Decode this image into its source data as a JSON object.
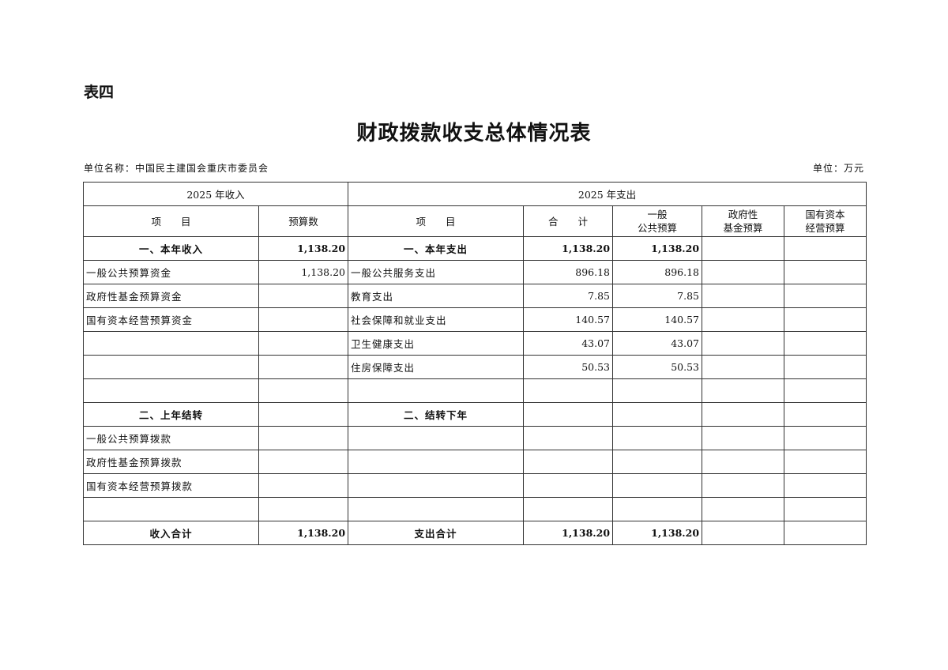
{
  "label": "表四",
  "title": "财政拨款收支总体情况表",
  "unit_name": "单位名称：中国民主建国会重庆市委员会",
  "unit": "单位：万元",
  "table": {
    "income_header": "2025 年收入",
    "expense_header": "2025 年支出",
    "columns": [
      "项　　目",
      "预算数",
      "项　　目",
      "合　　计",
      "一般\n公共预算",
      "政府性\n基金预算",
      "国有资本\n经营预算"
    ],
    "rows": [
      {
        "bold": true,
        "cells": [
          "一、本年收入",
          "1,138.20",
          "一、本年支出",
          "1,138.20",
          "1,138.20",
          "",
          ""
        ]
      },
      {
        "bold": false,
        "cells": [
          "一般公共预算资金",
          "1,138.20",
          "一般公共服务支出",
          "896.18",
          "896.18",
          "",
          ""
        ]
      },
      {
        "bold": false,
        "cells": [
          "政府性基金预算资金",
          "",
          "教育支出",
          "7.85",
          "7.85",
          "",
          ""
        ]
      },
      {
        "bold": false,
        "cells": [
          "国有资本经营预算资金",
          "",
          "社会保障和就业支出",
          "140.57",
          "140.57",
          "",
          ""
        ]
      },
      {
        "bold": false,
        "cells": [
          "",
          "",
          "卫生健康支出",
          "43.07",
          "43.07",
          "",
          ""
        ]
      },
      {
        "bold": false,
        "cells": [
          "",
          "",
          "住房保障支出",
          "50.53",
          "50.53",
          "",
          ""
        ]
      },
      {
        "bold": false,
        "cells": [
          "",
          "",
          "",
          "",
          "",
          "",
          ""
        ]
      },
      {
        "bold": true,
        "cells": [
          "二、上年结转",
          "",
          "二、结转下年",
          "",
          "",
          "",
          ""
        ]
      },
      {
        "bold": false,
        "cells": [
          "一般公共预算拨款",
          "",
          "",
          "",
          "",
          "",
          ""
        ]
      },
      {
        "bold": false,
        "cells": [
          "政府性基金预算拨款",
          "",
          "",
          "",
          "",
          "",
          ""
        ]
      },
      {
        "bold": false,
        "cells": [
          "国有资本经营预算拨款",
          "",
          "",
          "",
          "",
          "",
          ""
        ]
      },
      {
        "bold": false,
        "cells": [
          "",
          "",
          "",
          "",
          "",
          "",
          ""
        ]
      },
      {
        "bold": true,
        "cells": [
          "收入合计",
          "1,138.20",
          "支出合计",
          "1,138.20",
          "1,138.20",
          "",
          ""
        ]
      }
    ]
  }
}
